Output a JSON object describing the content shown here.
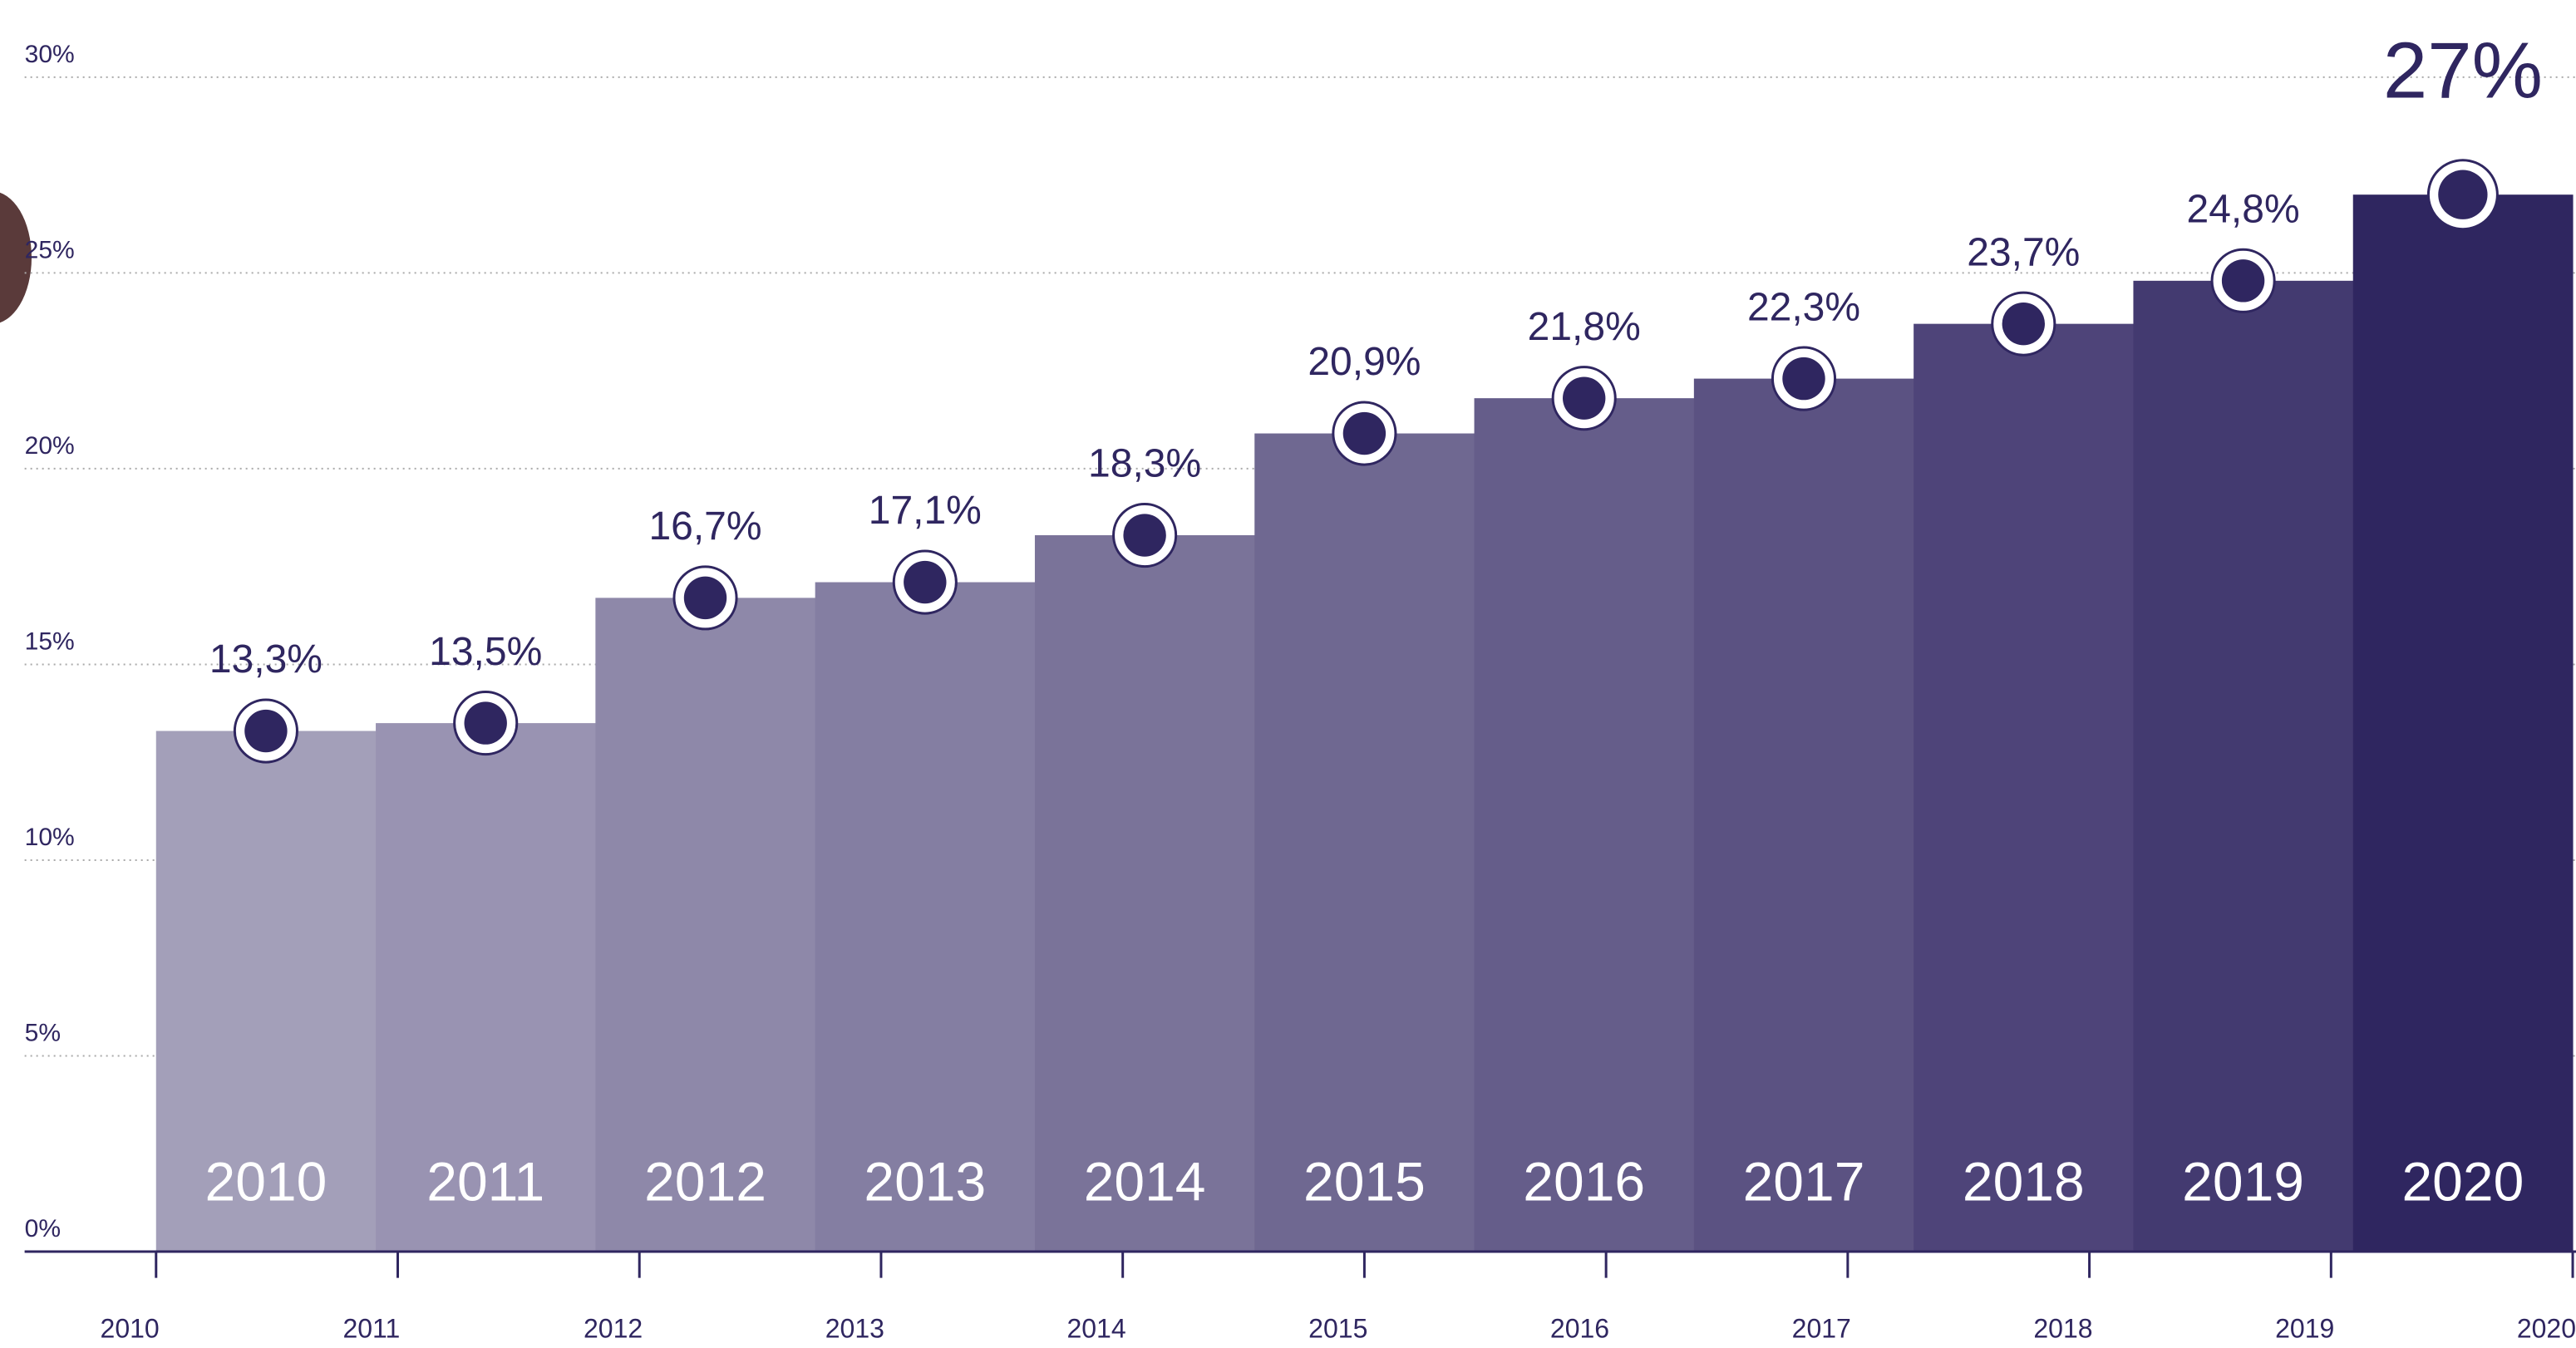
{
  "chart_data": {
    "type": "bar",
    "categories": [
      "2010",
      "2011",
      "2012",
      "2013",
      "2014",
      "2015",
      "2016",
      "2017",
      "2018",
      "2019",
      "2020"
    ],
    "values": [
      13.3,
      13.5,
      16.7,
      17.1,
      18.3,
      20.9,
      21.8,
      22.3,
      23.7,
      24.8,
      27
    ],
    "value_labels": [
      "13,3%",
      "13,5%",
      "16,7%",
      "17,1%",
      "18,3%",
      "20,9%",
      "21,8%",
      "22,3%",
      "23,7%",
      "24,8%",
      "27%"
    ],
    "colors": [
      "#a39fb9",
      "#9993b2",
      "#8e88a9",
      "#847ea2",
      "#7a7399",
      "#6f6891",
      "#655d8a",
      "#5b5282",
      "#4e4479",
      "#433a70",
      "#2f2660"
    ],
    "marker_color": "#2f2660",
    "ylim": [
      0,
      30
    ],
    "yticks": [
      {
        "value": 0,
        "label": "0%"
      },
      {
        "value": 5,
        "label": "5%"
      },
      {
        "value": 10,
        "label": "10%"
      },
      {
        "value": 15,
        "label": "15%"
      },
      {
        "value": 20,
        "label": "20%"
      },
      {
        "value": 25,
        "label": "25%"
      },
      {
        "value": 30,
        "label": "30%"
      }
    ],
    "grid": true
  }
}
